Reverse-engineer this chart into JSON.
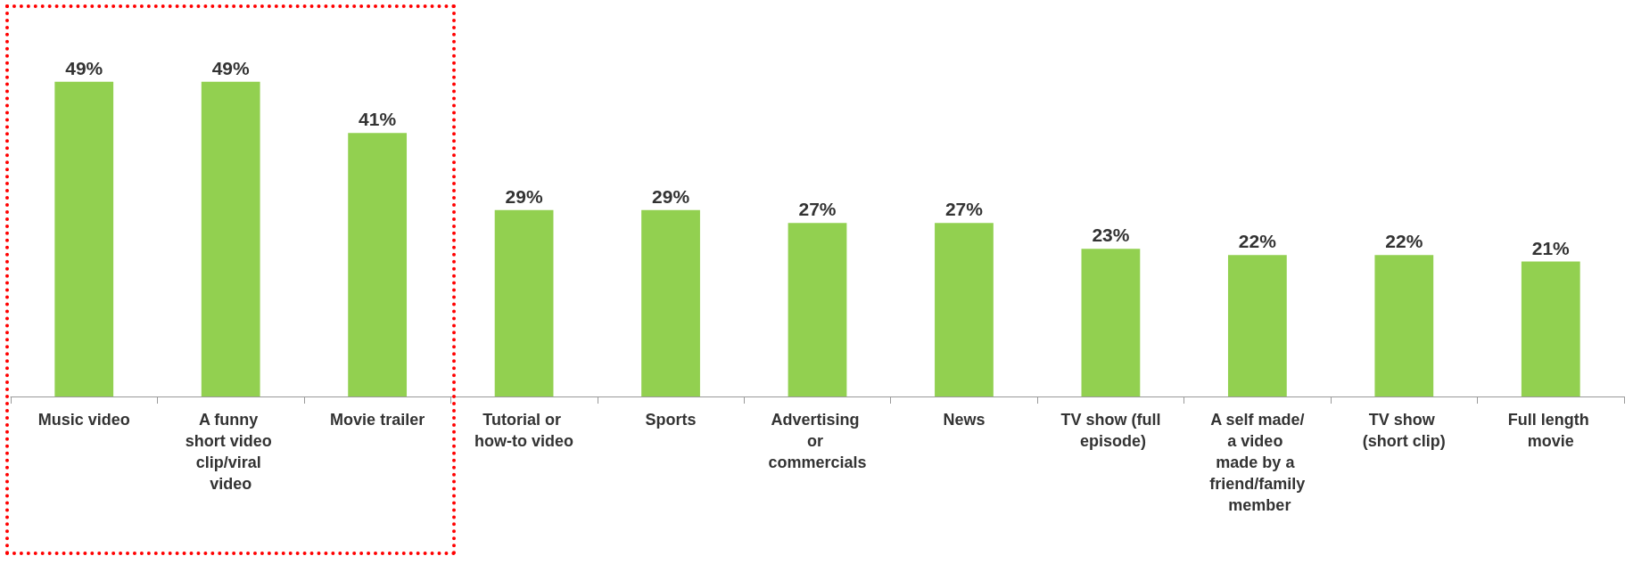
{
  "chart_data": {
    "type": "bar",
    "categories": [
      "Music video",
      "A funny short video clip/viral video",
      "Movie trailer",
      "Tutorial or how-to video",
      "Sports",
      "Advertising or commercials",
      "News",
      "TV show (full episode)",
      "A self made/a video made by a friend/family member",
      "TV show (short clip)",
      "Full length movie"
    ],
    "values": [
      49,
      49,
      41,
      29,
      29,
      27,
      27,
      23,
      22,
      22,
      21
    ],
    "value_labels": [
      "49%",
      "49%",
      "41%",
      "29%",
      "29%",
      "27%",
      "27%",
      "23%",
      "22%",
      "22%",
      "21%"
    ],
    "color": "#92d050"
  }
}
